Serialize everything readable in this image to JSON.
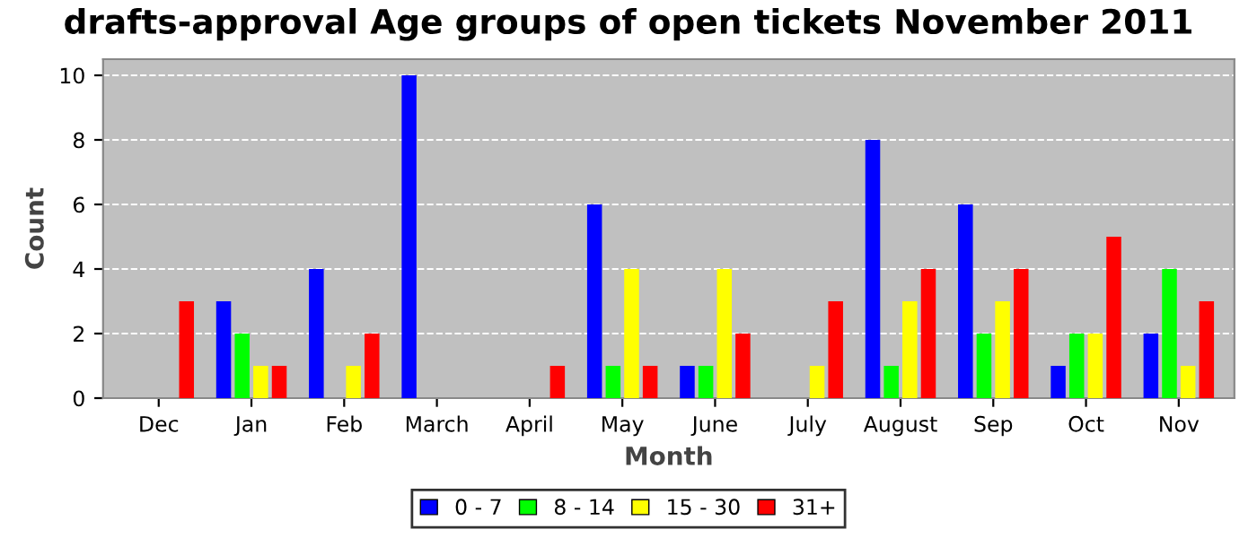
{
  "chart_data": {
    "type": "bar",
    "title": "drafts-approval Age groups of open tickets November 2011",
    "xlabel": "Month",
    "ylabel": "Count",
    "categories": [
      "Dec",
      "Jan",
      "Feb",
      "March",
      "April",
      "May",
      "June",
      "July",
      "August",
      "Sep",
      "Oct",
      "Nov"
    ],
    "series": [
      {
        "name": "0 - 7",
        "color": "#0000ff",
        "values": [
          0,
          3,
          4,
          10,
          0,
          6,
          1,
          0,
          8,
          6,
          1,
          2
        ]
      },
      {
        "name": "8 - 14",
        "color": "#00ff00",
        "values": [
          0,
          2,
          0,
          0,
          0,
          1,
          1,
          0,
          1,
          2,
          2,
          4
        ]
      },
      {
        "name": "15 - 30",
        "color": "#ffff00",
        "values": [
          0,
          1,
          1,
          0,
          0,
          4,
          4,
          1,
          3,
          3,
          2,
          1
        ]
      },
      {
        "name": "31+",
        "color": "#ff0000",
        "values": [
          3,
          1,
          2,
          0,
          1,
          1,
          2,
          3,
          4,
          4,
          5,
          3
        ]
      }
    ],
    "ylim": [
      0,
      10.5
    ],
    "yticks": [
      0,
      2,
      4,
      6,
      8,
      10
    ],
    "grid": "y",
    "legend": "bottom"
  }
}
